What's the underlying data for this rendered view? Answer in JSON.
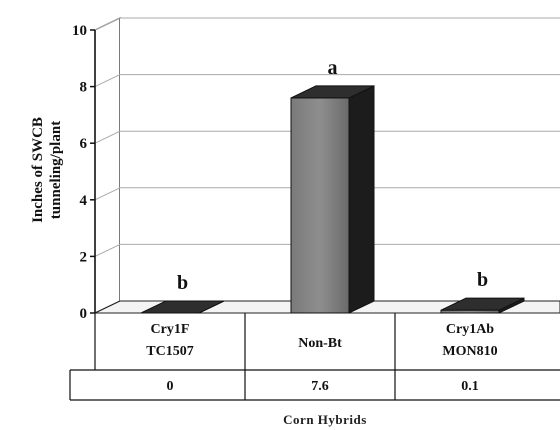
{
  "chart_data": {
    "type": "bar",
    "categories": [
      [
        "Cry1F",
        "TC1507"
      ],
      [
        "Non-Bt"
      ],
      [
        "Cry1Ab",
        "MON810"
      ]
    ],
    "values": [
      0,
      7.6,
      0.1
    ],
    "table_values": [
      "0",
      "7.6",
      "0.1"
    ],
    "significance_letters": [
      "b",
      "a",
      "b"
    ],
    "ylabel_lines": [
      "Inches of SWCB",
      "tunneling/plant"
    ],
    "xlabel": "Corn Hybrids",
    "ylim": [
      0,
      10
    ],
    "yticks": [
      0,
      2,
      4,
      6,
      8,
      10
    ],
    "grid": true,
    "bar_color": "#5a5a5a",
    "bar_top_color": "#2e2e2e",
    "bar_side_color": "#1c1c1c"
  }
}
